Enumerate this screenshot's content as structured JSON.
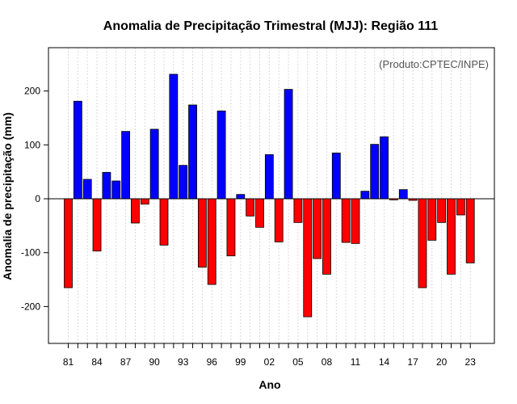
{
  "chart_data": {
    "type": "bar",
    "title": "Anomalia de Precipitação Trimestral (MJJ): Região 111",
    "xlabel": "Ano",
    "ylabel": "Anomalia de precipitação (mm)",
    "credit": "(Produto:CPTEC/INPE)",
    "ylim": [
      -270,
      280
    ],
    "yticks": [
      -200,
      -100,
      0,
      100,
      200
    ],
    "xtick_labels": [
      "81",
      "84",
      "87",
      "90",
      "93",
      "96",
      "99",
      "02",
      "05",
      "08",
      "11",
      "14",
      "17",
      "20",
      "23"
    ],
    "years": [
      1981,
      1982,
      1983,
      1984,
      1985,
      1986,
      1987,
      1988,
      1989,
      1990,
      1991,
      1992,
      1993,
      1994,
      1995,
      1996,
      1997,
      1998,
      1999,
      2000,
      2001,
      2002,
      2003,
      2004,
      2005,
      2006,
      2007,
      2008,
      2009,
      2010,
      2011,
      2012,
      2013,
      2014,
      2015,
      2016,
      2017,
      2018,
      2019,
      2020,
      2021,
      2022,
      2023
    ],
    "values": [
      -165,
      181,
      36,
      -97,
      49,
      33,
      125,
      -45,
      -10,
      129,
      -86,
      231,
      62,
      174,
      -127,
      -159,
      163,
      -106,
      8,
      -32,
      -53,
      82,
      -80,
      203,
      -44,
      -219,
      -111,
      -140,
      85,
      -81,
      -83,
      14,
      101,
      115,
      -2,
      17,
      -3,
      -165,
      -77,
      -44,
      -140,
      -30,
      -119
    ],
    "positive_color": "#0000ff",
    "negative_color": "#ff0000"
  }
}
